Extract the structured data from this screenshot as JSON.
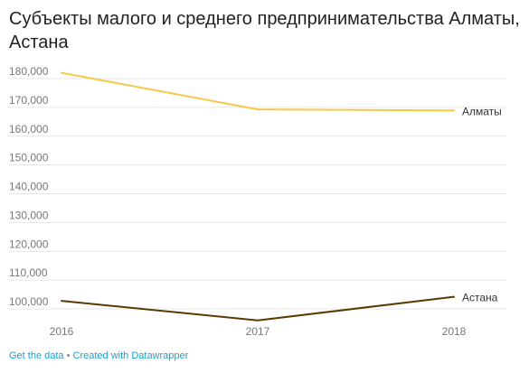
{
  "title": "Субъекты малого и среднего предпринимательства Алматы, Астана",
  "footer": {
    "get_data": "Get the data",
    "separator": " • ",
    "created_with": "Created with Datawrapper"
  },
  "chart_data": {
    "type": "line",
    "x": [
      "2016",
      "2017",
      "2018"
    ],
    "ylim": [
      95000,
      185000
    ],
    "yticks": [
      100000,
      110000,
      120000,
      130000,
      140000,
      150000,
      160000,
      170000,
      180000
    ],
    "ytick_labels": [
      "100,000",
      "110,000",
      "120,000",
      "130,000",
      "140,000",
      "150,000",
      "160,000",
      "170,000",
      "180,000"
    ],
    "grid": true,
    "series": [
      {
        "name": "Алматы",
        "values": [
          182000,
          169300,
          168900
        ],
        "color": "#f7c948"
      },
      {
        "name": "Астана",
        "values": [
          102800,
          96000,
          104200
        ],
        "color": "#5a3a00"
      }
    ]
  }
}
